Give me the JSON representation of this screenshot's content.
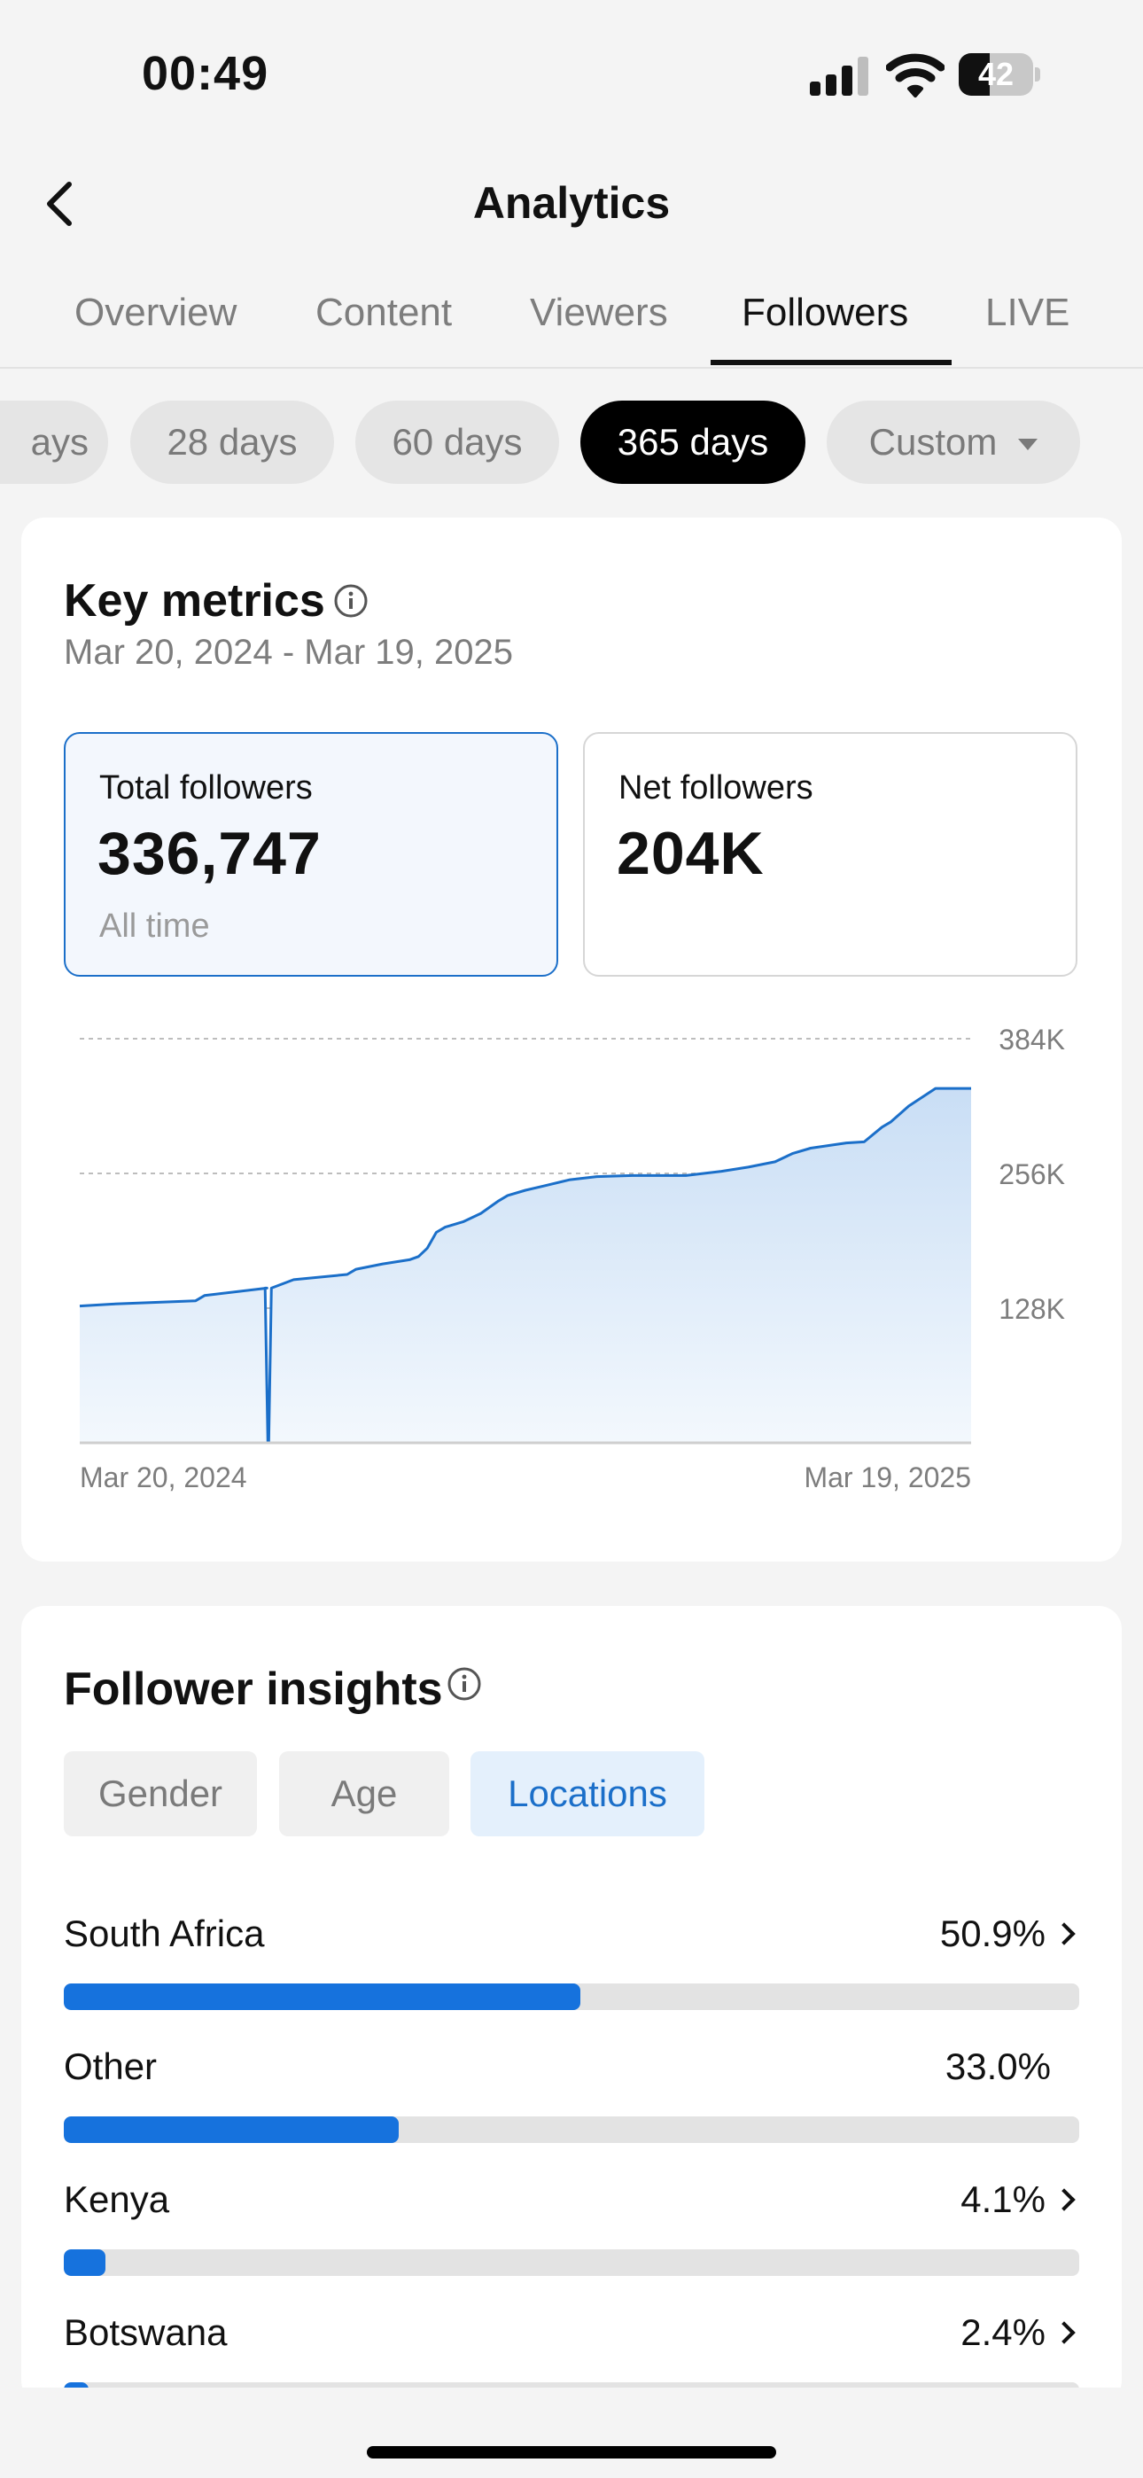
{
  "status_bar": {
    "time": "00:49",
    "battery": "42",
    "battery_level": 0.42
  },
  "header": {
    "title": "Analytics"
  },
  "tabs": [
    {
      "label": "Overview",
      "active": false
    },
    {
      "label": "Content",
      "active": false
    },
    {
      "label": "Viewers",
      "active": false
    },
    {
      "label": "Followers",
      "active": true
    },
    {
      "label": "LIVE",
      "active": false
    }
  ],
  "filters": [
    {
      "label": "ays",
      "active": false
    },
    {
      "label": "28 days",
      "active": false
    },
    {
      "label": "60 days",
      "active": false
    },
    {
      "label": "365 days",
      "active": true
    },
    {
      "label": "Custom",
      "active": false
    }
  ],
  "key_metrics": {
    "title": "Key metrics",
    "date_range": "Mar 20, 2024 - Mar 19, 2025",
    "total": {
      "label": "Total followers",
      "value": "336,747",
      "sub": "All time"
    },
    "net": {
      "label": "Net followers",
      "value": "204K"
    }
  },
  "chart_data": {
    "type": "area",
    "title": "",
    "xlabel": "",
    "ylabel": "",
    "x_labels": [
      "Mar 20, 2024",
      "Mar 19, 2025"
    ],
    "y_ticks": [
      "384K",
      "256K",
      "128K"
    ],
    "y_tick_values": [
      384000,
      256000,
      128000
    ],
    "ylim": [
      0,
      384000
    ],
    "grid": true,
    "accent_color": "#1b6fc9",
    "series": [
      {
        "x": [
          0,
          0.04,
          0.13,
          0.14,
          0.21,
          0.208,
          0.211,
          0.212,
          0.215,
          0.24,
          0.3,
          0.31,
          0.34,
          0.37,
          0.38,
          0.39,
          0.4,
          0.41,
          0.43,
          0.45,
          0.47,
          0.48,
          0.5,
          0.52,
          0.55,
          0.58,
          0.62,
          0.65,
          0.68,
          0.72,
          0.75,
          0.78,
          0.8,
          0.82,
          0.86,
          0.88,
          0.9,
          0.91,
          0.93,
          0.96,
          1.0
        ],
        "values": [
          130000,
          132000,
          135000,
          140000,
          147000,
          147000,
          1000,
          1000,
          147000,
          155000,
          160000,
          165000,
          170000,
          174000,
          177000,
          185000,
          200000,
          205000,
          210000,
          218000,
          230000,
          235000,
          240000,
          244000,
          250000,
          253000,
          254000,
          254000,
          254000,
          258000,
          262000,
          267000,
          275000,
          280000,
          285000,
          286000,
          300000,
          305000,
          320000,
          336747,
          336747
        ]
      }
    ]
  },
  "insights": {
    "title": "Follower insights",
    "segments": [
      {
        "label": "Gender",
        "active": false
      },
      {
        "label": "Age",
        "active": false
      },
      {
        "label": "Locations",
        "active": true
      }
    ],
    "locations": [
      {
        "name": "South Africa",
        "percent": "50.9%",
        "value": 50.9,
        "chevron": true
      },
      {
        "name": "Other",
        "percent": "33.0%",
        "value": 33.0,
        "chevron": false
      },
      {
        "name": "Kenya",
        "percent": "4.1%",
        "value": 4.1,
        "chevron": true
      },
      {
        "name": "Botswana",
        "percent": "2.4%",
        "value": 2.4,
        "chevron": true
      }
    ]
  }
}
